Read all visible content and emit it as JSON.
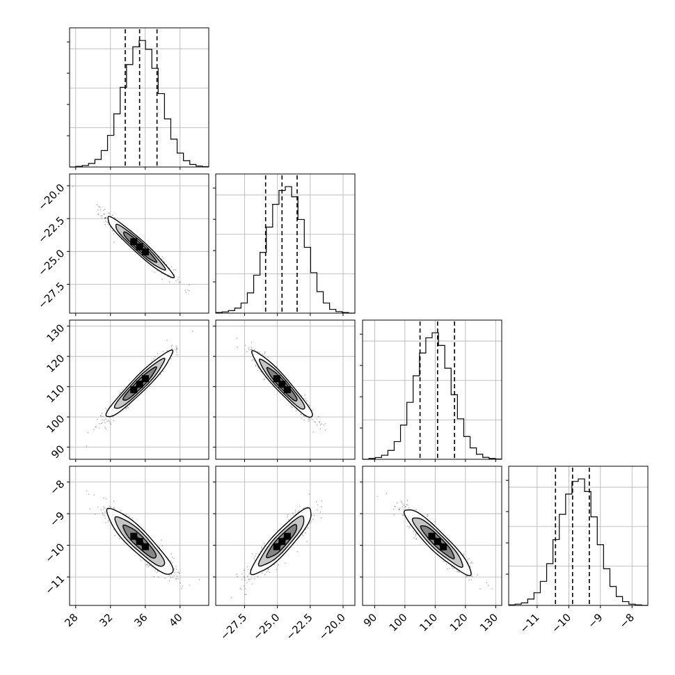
{
  "chart_data": {
    "type": "corner",
    "parameters": [
      {
        "index": 0,
        "range": [
          27.3,
          43.3
        ],
        "ticks": [
          28,
          32,
          36,
          40
        ],
        "tick_labels": [
          "28",
          "32",
          "36",
          "40"
        ],
        "median": 35.35,
        "q16": 33.7,
        "q84": 37.35,
        "sd": 1.9
      },
      {
        "index": 1,
        "range": [
          -29.7,
          -19.1
        ],
        "ticks": [
          -27.5,
          -25.0,
          -22.5,
          -20.0
        ],
        "tick_labels": [
          "−27.5",
          "−25.0",
          "−22.5",
          "−20.0"
        ],
        "median": -24.65,
        "q16": -25.9,
        "q84": -23.5,
        "sd": 1.15
      },
      {
        "index": 2,
        "range": [
          86,
          132
        ],
        "ticks": [
          90,
          100,
          110,
          120,
          130
        ],
        "tick_labels": [
          "90",
          "100",
          "110",
          "120",
          "130"
        ],
        "median": 110.8,
        "q16": 105.0,
        "q84": 116.4,
        "sd": 5.5
      },
      {
        "index": 3,
        "range": [
          -11.9,
          -7.5
        ],
        "ticks": [
          -11,
          -10,
          -9,
          -8
        ],
        "tick_labels": [
          "−11",
          "−10",
          "−9",
          "−8"
        ],
        "median": -9.88,
        "q16": -10.42,
        "q84": -9.35,
        "sd": 0.52
      }
    ],
    "correlations": {
      "1_0": -0.96,
      "2_0": 0.95,
      "2_1": -0.95,
      "3_0": -0.9,
      "3_1": 0.9,
      "3_2": -0.92
    },
    "histograms": [
      [
        0,
        0.005,
        0.012,
        0.028,
        0.06,
        0.13,
        0.25,
        0.42,
        0.63,
        0.81,
        0.95,
        1.0,
        0.93,
        0.78,
        0.58,
        0.38,
        0.22,
        0.11,
        0.05,
        0.02,
        0.008,
        0.003
      ],
      [
        0.005,
        0.01,
        0.02,
        0.04,
        0.08,
        0.16,
        0.3,
        0.48,
        0.68,
        0.86,
        0.97,
        1.0,
        0.92,
        0.74,
        0.52,
        0.32,
        0.17,
        0.08,
        0.03,
        0.012,
        0.005,
        0
      ],
      [
        0,
        0.006,
        0.014,
        0.032,
        0.07,
        0.14,
        0.27,
        0.45,
        0.66,
        0.84,
        0.96,
        1.0,
        0.9,
        0.72,
        0.51,
        0.32,
        0.18,
        0.09,
        0.04,
        0.015,
        0.006,
        0.002
      ],
      [
        0.004,
        0.01,
        0.02,
        0.05,
        0.1,
        0.19,
        0.33,
        0.52,
        0.72,
        0.88,
        0.98,
        1.0,
        0.9,
        0.7,
        0.48,
        0.29,
        0.15,
        0.07,
        0.03,
        0.01,
        0.004,
        0
      ]
    ],
    "quantiles": [
      0.16,
      0.5,
      0.84
    ],
    "grid": true,
    "show_datapoints": true,
    "levels_sigma": [
      1,
      1.5,
      2
    ],
    "color": "#000000"
  }
}
